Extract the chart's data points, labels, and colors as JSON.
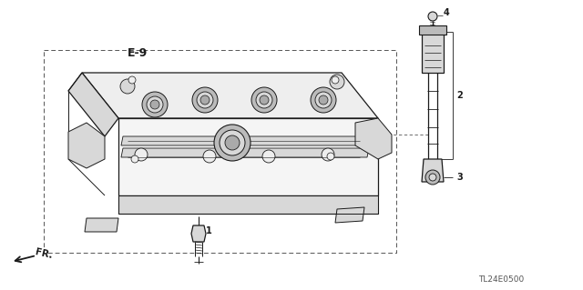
{
  "bg_color": "#ffffff",
  "title_code": "TL24E0500",
  "ref_label": "E-9",
  "fr_label": "FR.",
  "line_color": "#1a1a1a",
  "dash_color": "#555555",
  "light_fill": "#eeeeee",
  "mid_fill": "#d8d8d8",
  "dark_fill": "#bbbbbb"
}
